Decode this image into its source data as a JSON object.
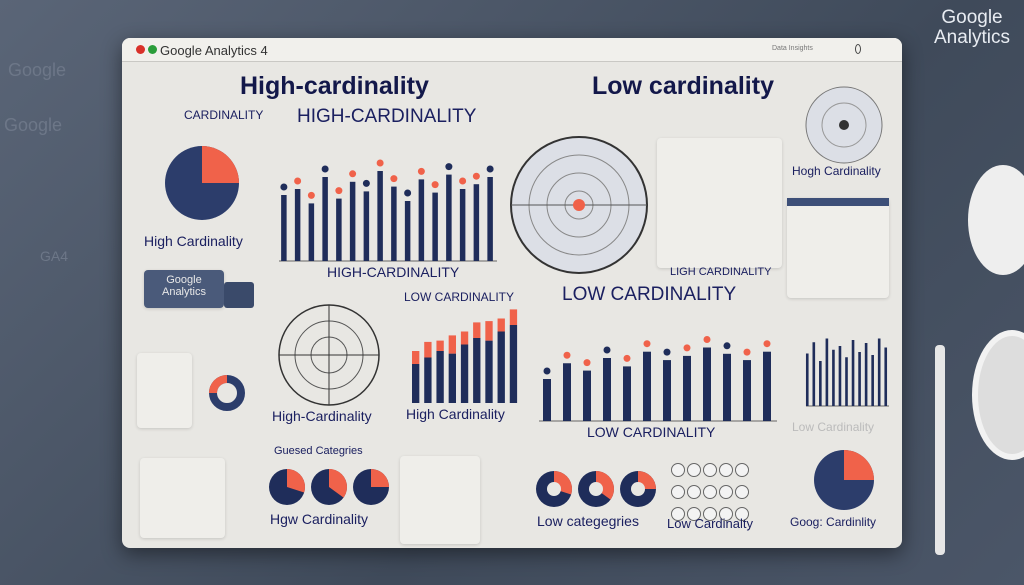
{
  "background": {
    "left_texts": [
      "Google",
      "Google",
      "GA4"
    ],
    "brand_line1": "Google",
    "brand_line2": "Analytics"
  },
  "window": {
    "title": "Google Analytics 4",
    "toolbar_text": "Data Insights",
    "colors": {
      "navy": "#1f2d5a",
      "accent": "#f0624a",
      "panel": "#e8e7e3"
    }
  },
  "headings": {
    "high_main": "High-cardinality",
    "low_main": "Low cardinality",
    "high_caps": "HIGH-CARDINALITY",
    "cardinality_caps": "CARDINALITY",
    "high_caps_bottom": "HIGH-CARDINALITY",
    "low_caps": "LOW CARDINALITY",
    "low_caps_big": "LOW CARDINALITY",
    "low_caps_bottom": "LOW CARDINALITY"
  },
  "labels": {
    "high_card_left": "High Cardinality",
    "truck": "Google Analytics",
    "high_card_radar": "High-Cardinality",
    "high_card_bars": "High Cardinality",
    "hogh_card": "Hogh Cardinality",
    "ligh_card": "LIGH CARDINALITY",
    "low_card_faded": "Low Cardinality",
    "guessed": "Guesed Categries",
    "hgw": "Hgw Cardinality",
    "low_categories": "Low categegries",
    "low_card_icons": "Low Cardinalty",
    "goog_card": "Goog: Cardinlity"
  },
  "charts": {
    "high_bars": [
      55,
      60,
      48,
      70,
      52,
      66,
      58,
      75,
      62,
      50,
      68,
      57,
      72,
      60,
      64,
      70
    ],
    "low_bars": [
      40,
      55,
      48,
      60,
      52,
      66,
      58,
      62,
      70,
      64,
      58,
      66
    ],
    "stacked_bars": [
      [
        30,
        10
      ],
      [
        35,
        12
      ],
      [
        40,
        8
      ],
      [
        38,
        14
      ],
      [
        45,
        10
      ],
      [
        50,
        12
      ],
      [
        48,
        15
      ],
      [
        55,
        10
      ],
      [
        60,
        12
      ]
    ],
    "right_bars": [
      70,
      85,
      60,
      90,
      75,
      80,
      65,
      88,
      72,
      84,
      68,
      90,
      78
    ],
    "pies": [
      0.3,
      0.35,
      0.25
    ]
  }
}
